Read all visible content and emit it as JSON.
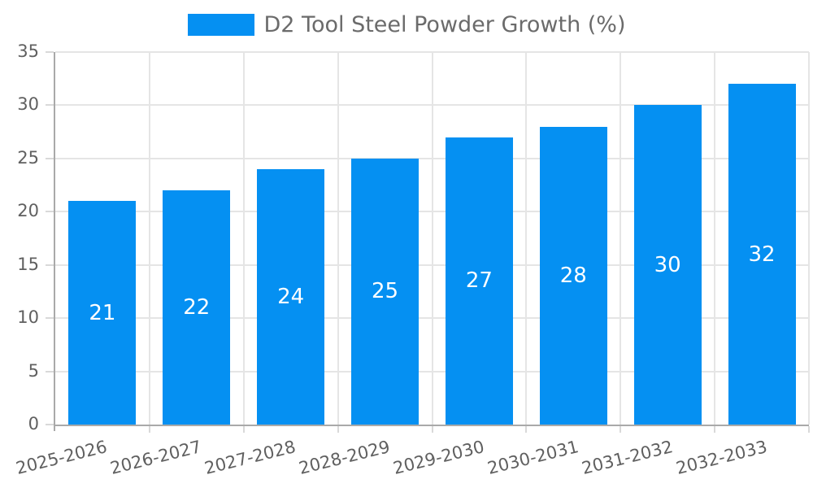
{
  "chart_data": {
    "type": "bar",
    "title": "D2 Tool Steel Powder Growth (%)",
    "legend": {
      "label": "D2 Tool Steel Powder Growth (%)",
      "position": "top-center"
    },
    "categories": [
      "2025-2026",
      "2026-2027",
      "2027-2028",
      "2028-2029",
      "2029-2030",
      "2030-2031",
      "2031-2032",
      "2032-2033"
    ],
    "values": [
      21,
      22,
      24,
      25,
      27,
      28,
      30,
      32
    ],
    "bar_value_labels": [
      "21",
      "22",
      "24",
      "25",
      "27",
      "28",
      "30",
      "32"
    ],
    "xlabel": "",
    "ylabel": "",
    "ylim": [
      0,
      35
    ],
    "yticks": [
      0,
      5,
      10,
      15,
      20,
      25,
      30,
      35
    ],
    "grid": "on",
    "grid_style": "horizontal lines at y ticks, vertical lines at category boundaries",
    "x_label_rotation_deg": -14,
    "colors": {
      "bar": "#0590f2",
      "grid": "#e5e5e5",
      "axis": "#a9a9a9",
      "tick_mark": "#d9d9d9",
      "tick_text": "#606060",
      "legend_text": "#6b6b6b",
      "bar_label_text": "#ffffff",
      "background": "#ffffff"
    }
  }
}
